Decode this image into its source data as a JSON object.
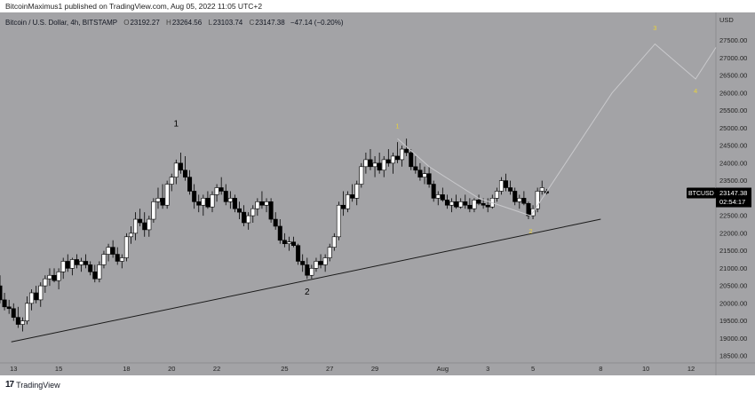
{
  "publisher_line": "BitcoinMaximus1 published on TradingView.com, Aug 05, 2022 11:05 UTC+2",
  "footer": {
    "brand": "TradingView",
    "logo": "17"
  },
  "colors": {
    "background": "#a3a3a6",
    "candle_up": "#ffffff",
    "candle_down": "#000000",
    "wave_label_yellow": "#e8d13a",
    "price_tag": "#000000"
  },
  "chart_data": {
    "type": "candlestick",
    "header": {
      "symbol": "Bitcoin / U.S. Dollar, 4h, BITSTAMP",
      "o_label": "O",
      "o": "23192.27",
      "h_label": "H",
      "h": "23264.56",
      "l_label": "L",
      "l": "23103.74",
      "c_label": "C",
      "c": "23147.38",
      "change": "−47.14 (−0.20%)"
    },
    "currency": "USD",
    "ylim": [
      18300,
      28300
    ],
    "y_ticks": [
      "18500.00",
      "19000.00",
      "19500.00",
      "20000.00",
      "20500.00",
      "21000.00",
      "21500.00",
      "22000.00",
      "22500.00",
      "23000.00",
      "23500.00",
      "24000.00",
      "24500.00",
      "25000.00",
      "25500.00",
      "26000.00",
      "26500.00",
      "27000.00",
      "27500.00"
    ],
    "x_ticks": [
      {
        "label": "13",
        "day": 13
      },
      {
        "label": "15",
        "day": 15
      },
      {
        "label": "18",
        "day": 18
      },
      {
        "label": "20",
        "day": 20
      },
      {
        "label": "22",
        "day": 22
      },
      {
        "label": "25",
        "day": 25
      },
      {
        "label": "27",
        "day": 27
      },
      {
        "label": "29",
        "day": 29
      },
      {
        "label": "Aug",
        "day": 32
      },
      {
        "label": "3",
        "day": 34
      },
      {
        "label": "5",
        "day": 36
      },
      {
        "label": "8",
        "day": 39
      },
      {
        "label": "10",
        "day": 41
      },
      {
        "label": "12",
        "day": 43
      }
    ],
    "xlim": [
      12.4,
      44.1
    ],
    "candles": [
      [
        12.4,
        20500,
        20800,
        20000,
        20100
      ],
      [
        12.6,
        20100,
        20300,
        19800,
        19900
      ],
      [
        12.8,
        19900,
        20100,
        19700,
        19850
      ],
      [
        13.0,
        19850,
        20000,
        19500,
        19600
      ],
      [
        13.2,
        19600,
        19900,
        19300,
        19400
      ],
      [
        13.4,
        19400,
        19600,
        19200,
        19500
      ],
      [
        13.6,
        19500,
        20200,
        19400,
        20000
      ],
      [
        13.8,
        20000,
        20400,
        19800,
        20300
      ],
      [
        14.0,
        20300,
        20500,
        20000,
        20100
      ],
      [
        14.2,
        20100,
        20600,
        19900,
        20500
      ],
      [
        14.4,
        20500,
        20800,
        20300,
        20700
      ],
      [
        14.6,
        20700,
        21000,
        20500,
        20800
      ],
      [
        14.8,
        20800,
        21000,
        20600,
        20650
      ],
      [
        15.0,
        20650,
        21000,
        20400,
        20900
      ],
      [
        15.2,
        20900,
        21300,
        20700,
        21200
      ],
      [
        15.4,
        21200,
        21400,
        20900,
        21000
      ],
      [
        15.6,
        21000,
        21300,
        20800,
        21250
      ],
      [
        15.8,
        21250,
        21400,
        21000,
        21100
      ],
      [
        16.0,
        21100,
        21300,
        20900,
        21200
      ],
      [
        16.2,
        21200,
        21400,
        21000,
        21100
      ],
      [
        16.4,
        21100,
        21200,
        20800,
        20900
      ],
      [
        16.6,
        20900,
        21100,
        20600,
        20700
      ],
      [
        16.8,
        20700,
        21200,
        20600,
        21100
      ],
      [
        17.0,
        21100,
        21500,
        21000,
        21400
      ],
      [
        17.2,
        21400,
        21700,
        21200,
        21600
      ],
      [
        17.4,
        21600,
        21800,
        21300,
        21400
      ],
      [
        17.6,
        21400,
        21600,
        21100,
        21200
      ],
      [
        17.8,
        21200,
        21400,
        21000,
        21300
      ],
      [
        18.0,
        21300,
        22000,
        21200,
        21900
      ],
      [
        18.2,
        21900,
        22200,
        21700,
        22000
      ],
      [
        18.4,
        22000,
        22600,
        21800,
        22400
      ],
      [
        18.6,
        22400,
        22700,
        22200,
        22300
      ],
      [
        18.8,
        22300,
        22600,
        21900,
        22100
      ],
      [
        19.0,
        22100,
        22500,
        21900,
        22400
      ],
      [
        19.2,
        22400,
        23000,
        22300,
        22900
      ],
      [
        19.4,
        22900,
        23300,
        22700,
        23000
      ],
      [
        19.6,
        23000,
        23400,
        22700,
        22800
      ],
      [
        19.8,
        22800,
        23500,
        22700,
        23400
      ],
      [
        20.0,
        23400,
        23700,
        23200,
        23600
      ],
      [
        20.2,
        23600,
        24100,
        23400,
        24000
      ],
      [
        20.4,
        24000,
        24300,
        23700,
        23800
      ],
      [
        20.6,
        23800,
        24200,
        23500,
        23600
      ],
      [
        20.8,
        23600,
        23800,
        23100,
        23200
      ],
      [
        21.0,
        23200,
        23400,
        22700,
        22900
      ],
      [
        21.2,
        22900,
        23100,
        22600,
        22800
      ],
      [
        21.4,
        22800,
        23100,
        22500,
        23000
      ],
      [
        21.6,
        23000,
        23200,
        22700,
        22750
      ],
      [
        21.8,
        22750,
        23200,
        22600,
        23100
      ],
      [
        22.0,
        23100,
        23400,
        22900,
        23300
      ],
      [
        22.2,
        23300,
        23600,
        23100,
        23200
      ],
      [
        22.4,
        23200,
        23400,
        22800,
        22900
      ],
      [
        22.6,
        22900,
        23200,
        22700,
        23000
      ],
      [
        22.8,
        23000,
        23100,
        22600,
        22700
      ],
      [
        23.0,
        22700,
        22900,
        22400,
        22600
      ],
      [
        23.2,
        22600,
        22800,
        22200,
        22300
      ],
      [
        23.4,
        22300,
        22600,
        22100,
        22500
      ],
      [
        23.6,
        22500,
        22800,
        22300,
        22700
      ],
      [
        23.8,
        22700,
        23000,
        22500,
        22900
      ],
      [
        24.0,
        22900,
        23200,
        22700,
        22800
      ],
      [
        24.2,
        22800,
        23000,
        22600,
        22900
      ],
      [
        24.4,
        22900,
        23000,
        22300,
        22400
      ],
      [
        24.6,
        22400,
        22600,
        22100,
        22200
      ],
      [
        24.8,
        22200,
        22400,
        21700,
        21800
      ],
      [
        25.0,
        21800,
        22000,
        21600,
        21700
      ],
      [
        25.2,
        21700,
        21900,
        21500,
        21750
      ],
      [
        25.4,
        21750,
        21900,
        21600,
        21650
      ],
      [
        25.6,
        21650,
        21700,
        21100,
        21200
      ],
      [
        25.8,
        21200,
        21400,
        20900,
        21100
      ],
      [
        26.0,
        21100,
        21300,
        20700,
        20800
      ],
      [
        26.2,
        20800,
        21100,
        20700,
        21000
      ],
      [
        26.4,
        21000,
        21300,
        20900,
        21200
      ],
      [
        26.6,
        21200,
        21400,
        21000,
        21100
      ],
      [
        26.8,
        21100,
        21400,
        20900,
        21300
      ],
      [
        27.0,
        21300,
        21700,
        21200,
        21600
      ],
      [
        27.2,
        21600,
        22000,
        21500,
        21900
      ],
      [
        27.4,
        21900,
        22900,
        21800,
        22800
      ],
      [
        27.6,
        22800,
        23200,
        22500,
        22700
      ],
      [
        27.8,
        22700,
        23200,
        22600,
        23100
      ],
      [
        28.0,
        23100,
        23400,
        22900,
        23000
      ],
      [
        28.2,
        23000,
        23500,
        22800,
        23400
      ],
      [
        28.4,
        23400,
        24000,
        23300,
        23900
      ],
      [
        28.6,
        23900,
        24300,
        23700,
        24100
      ],
      [
        28.8,
        24100,
        24400,
        23800,
        23900
      ],
      [
        29.0,
        23900,
        24200,
        23600,
        24000
      ],
      [
        29.2,
        24000,
        24300,
        23700,
        23800
      ],
      [
        29.4,
        23800,
        24200,
        23600,
        24100
      ],
      [
        29.6,
        24100,
        24400,
        23900,
        24000
      ],
      [
        29.8,
        24000,
        24300,
        23700,
        24200
      ],
      [
        30.0,
        24200,
        24600,
        24000,
        24100
      ],
      [
        30.2,
        24100,
        24500,
        23900,
        24400
      ],
      [
        30.4,
        24400,
        24700,
        24200,
        24300
      ],
      [
        30.6,
        24300,
        24400,
        23800,
        23900
      ],
      [
        30.8,
        23900,
        24200,
        23700,
        23800
      ],
      [
        31.0,
        23800,
        24000,
        23500,
        23600
      ],
      [
        31.2,
        23600,
        23900,
        23400,
        23700
      ],
      [
        31.4,
        23700,
        23900,
        23300,
        23400
      ],
      [
        31.6,
        23400,
        23500,
        22900,
        23000
      ],
      [
        31.8,
        23000,
        23200,
        22800,
        23100
      ],
      [
        32.0,
        23100,
        23300,
        22900,
        22950
      ],
      [
        32.2,
        22950,
        23100,
        22700,
        22800
      ],
      [
        32.4,
        22800,
        23000,
        22600,
        22900
      ],
      [
        32.6,
        22900,
        23100,
        22700,
        22750
      ],
      [
        32.8,
        22750,
        23000,
        22700,
        22900
      ],
      [
        33.0,
        22900,
        23100,
        22700,
        22800
      ],
      [
        33.2,
        22800,
        23000,
        22600,
        22700
      ],
      [
        33.4,
        22700,
        23000,
        22600,
        22950
      ],
      [
        33.6,
        22950,
        23100,
        22800,
        22850
      ],
      [
        33.8,
        22850,
        23000,
        22700,
        22800
      ],
      [
        34.0,
        22800,
        23000,
        22600,
        22750
      ],
      [
        34.2,
        22750,
        23100,
        22700,
        23000
      ],
      [
        34.4,
        23000,
        23300,
        22900,
        23200
      ],
      [
        34.6,
        23200,
        23600,
        23100,
        23500
      ],
      [
        34.8,
        23500,
        23700,
        23200,
        23300
      ],
      [
        35.0,
        23300,
        23500,
        23100,
        23200
      ],
      [
        35.2,
        23200,
        23300,
        22800,
        22900
      ],
      [
        35.4,
        22900,
        23100,
        22700,
        23000
      ],
      [
        35.6,
        23000,
        23200,
        22800,
        22850
      ],
      [
        35.8,
        22850,
        22900,
        22400,
        22500
      ],
      [
        36.0,
        22500,
        22800,
        22400,
        22700
      ],
      [
        36.2,
        22700,
        23300,
        22600,
        23200
      ],
      [
        36.4,
        23200,
        23500,
        23100,
        23300
      ],
      [
        36.6,
        23192,
        23265,
        23104,
        23147
      ]
    ],
    "trendline": [
      [
        12.9,
        18900
      ],
      [
        39.0,
        22400
      ]
    ],
    "projection": [
      [
        30.0,
        24700
      ],
      [
        31.4,
        23900
      ],
      [
        33.6,
        23000
      ],
      [
        35.9,
        22500
      ],
      [
        39.5,
        26000
      ],
      [
        41.4,
        27400
      ],
      [
        43.2,
        26400
      ],
      [
        44.1,
        27300
      ]
    ],
    "wave_labels": [
      {
        "text": "1",
        "day": 20.2,
        "price": 25050,
        "color": "#000000"
      },
      {
        "text": "2",
        "day": 26.0,
        "price": 20250,
        "color": "#000000"
      },
      {
        "text": "1",
        "day": 30.0,
        "price": 25000,
        "color": "#e8d13a"
      },
      {
        "text": "2",
        "day": 35.9,
        "price": 22000,
        "color": "#e8d13a"
      },
      {
        "text": "3",
        "day": 41.4,
        "price": 27800,
        "color": "#e8d13a"
      },
      {
        "text": "4",
        "day": 43.2,
        "price": 26000,
        "color": "#e8d13a"
      }
    ],
    "price_tag": {
      "symbol": "BTCUSD",
      "price": "23147.38",
      "countdown": "02:54:17",
      "value": 23147.38
    }
  }
}
